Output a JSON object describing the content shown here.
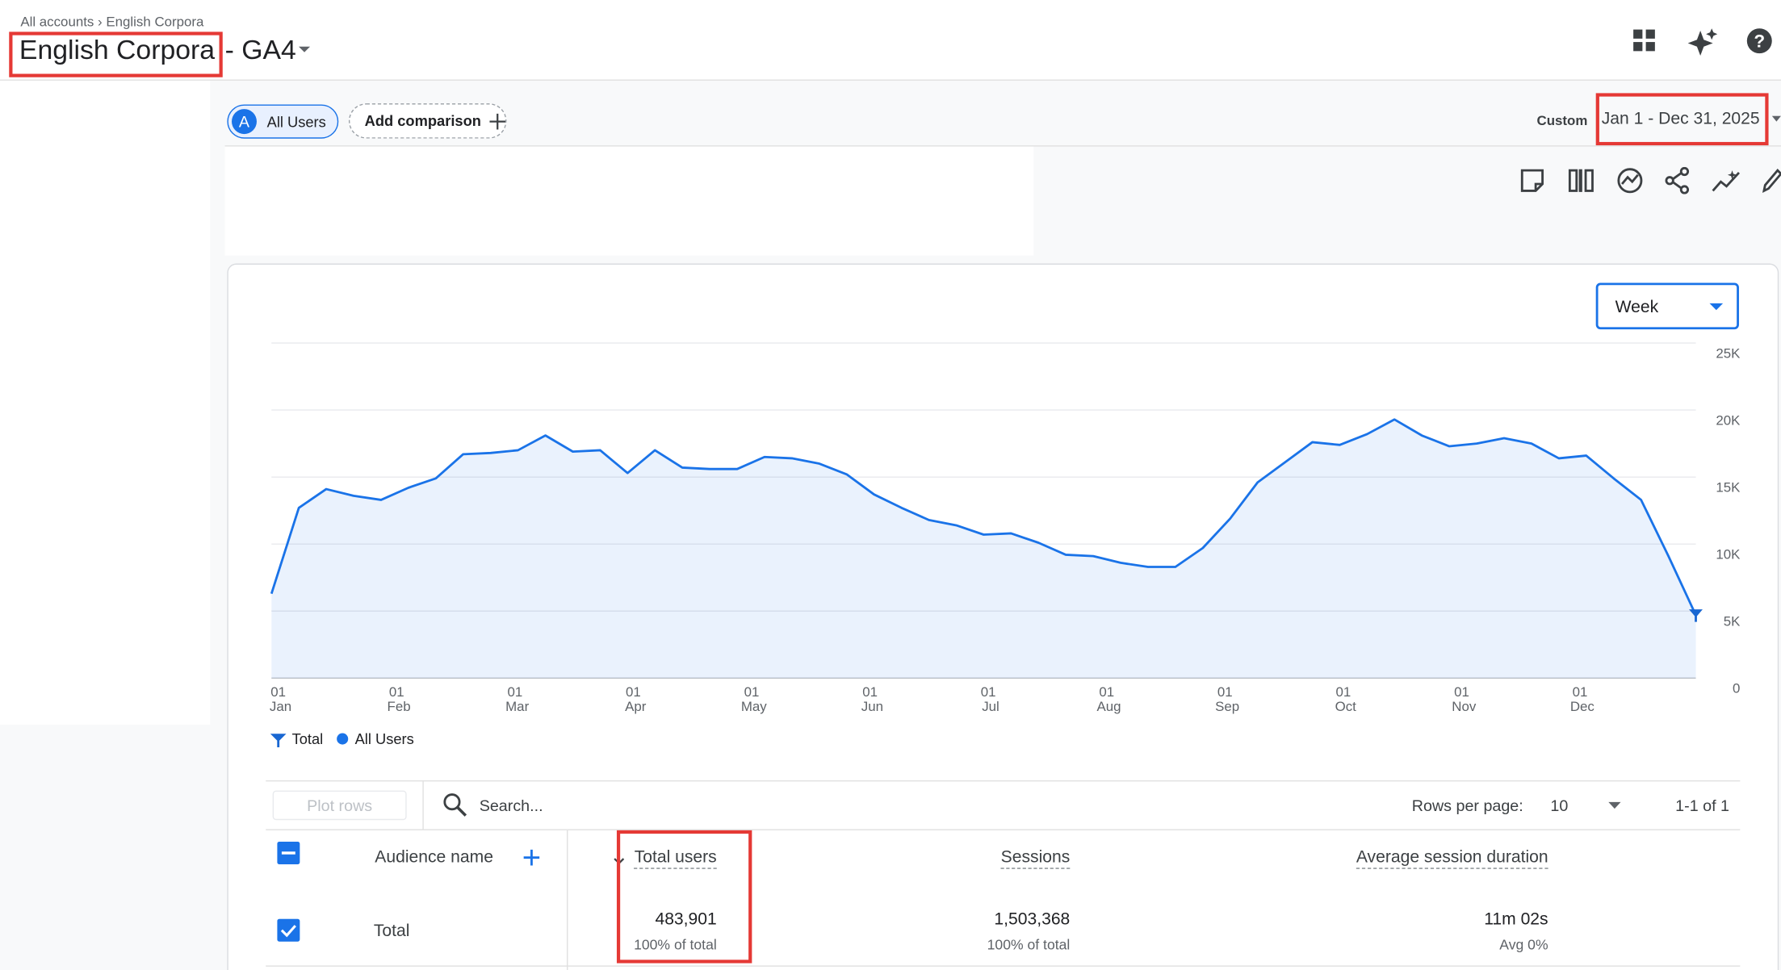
{
  "header": {
    "breadcrumb": [
      "All accounts",
      "English Corpora"
    ],
    "property": "English Corpora",
    "suffix": "- GA4"
  },
  "comparison": {
    "segment_initial": "A",
    "segment": "All Users",
    "add": "Add comparison"
  },
  "date_range": {
    "label": "Custom",
    "range": "Jan 1 - Dec 31, 2025"
  },
  "chart": {
    "type": "line",
    "interval": "Week",
    "x_labels": [
      {
        "day": "01",
        "month": "Jan"
      },
      {
        "day": "01",
        "month": "Feb"
      },
      {
        "day": "01",
        "month": "Mar"
      },
      {
        "day": "01",
        "month": "Apr"
      },
      {
        "day": "01",
        "month": "May"
      },
      {
        "day": "01",
        "month": "Jun"
      },
      {
        "day": "01",
        "month": "Jul"
      },
      {
        "day": "01",
        "month": "Aug"
      },
      {
        "day": "01",
        "month": "Sep"
      },
      {
        "day": "01",
        "month": "Oct"
      },
      {
        "day": "01",
        "month": "Nov"
      },
      {
        "day": "01",
        "month": "Dec"
      }
    ],
    "series": [
      {
        "name": "All Users",
        "color": "#1a73e8",
        "values": [
          6300,
          12700,
          14100,
          13600,
          13300,
          14200,
          14900,
          16700,
          16800,
          17000,
          18100,
          16900,
          17000,
          15300,
          17000,
          15700,
          15600,
          15600,
          16500,
          16400,
          16000,
          15200,
          13700,
          12700,
          11800,
          11400,
          10700,
          10800,
          10100,
          9200,
          9100,
          8600,
          8300,
          8300,
          9700,
          11900,
          14600,
          16100,
          17600,
          17400,
          18200,
          19300,
          18100,
          17300,
          17500,
          17900,
          17500,
          16400,
          16600,
          14900,
          13300,
          9100,
          4700
        ]
      }
    ],
    "total_marker": {
      "name": "Total",
      "color": "#1967d2"
    },
    "ylim": [
      0,
      25000
    ],
    "yticks": [
      0,
      {
        "value": 5000,
        "label": "5K"
      },
      {
        "value": 10000,
        "label": "10K"
      },
      {
        "value": 15000,
        "label": "15K"
      },
      {
        "value": 20000,
        "label": "20K"
      },
      {
        "value": 25000,
        "label": "25K"
      }
    ],
    "grid": true
  },
  "table": {
    "plot_rows": "Plot rows",
    "search": "Search...",
    "rows_per_page_label": "Rows per page:",
    "rows_per_page": 10,
    "pagination": "1-1 of 1",
    "columns": [
      "Audience name",
      "Total users",
      "Sessions",
      "Average session duration"
    ],
    "rows": [
      {
        "name": "Total",
        "cells": [
          {
            "value": "483,901",
            "note": "100% of total"
          },
          {
            "value": "1,503,368",
            "note": "100% of total"
          },
          {
            "value": "11m 02s",
            "note": "Avg 0%"
          }
        ]
      }
    ]
  }
}
